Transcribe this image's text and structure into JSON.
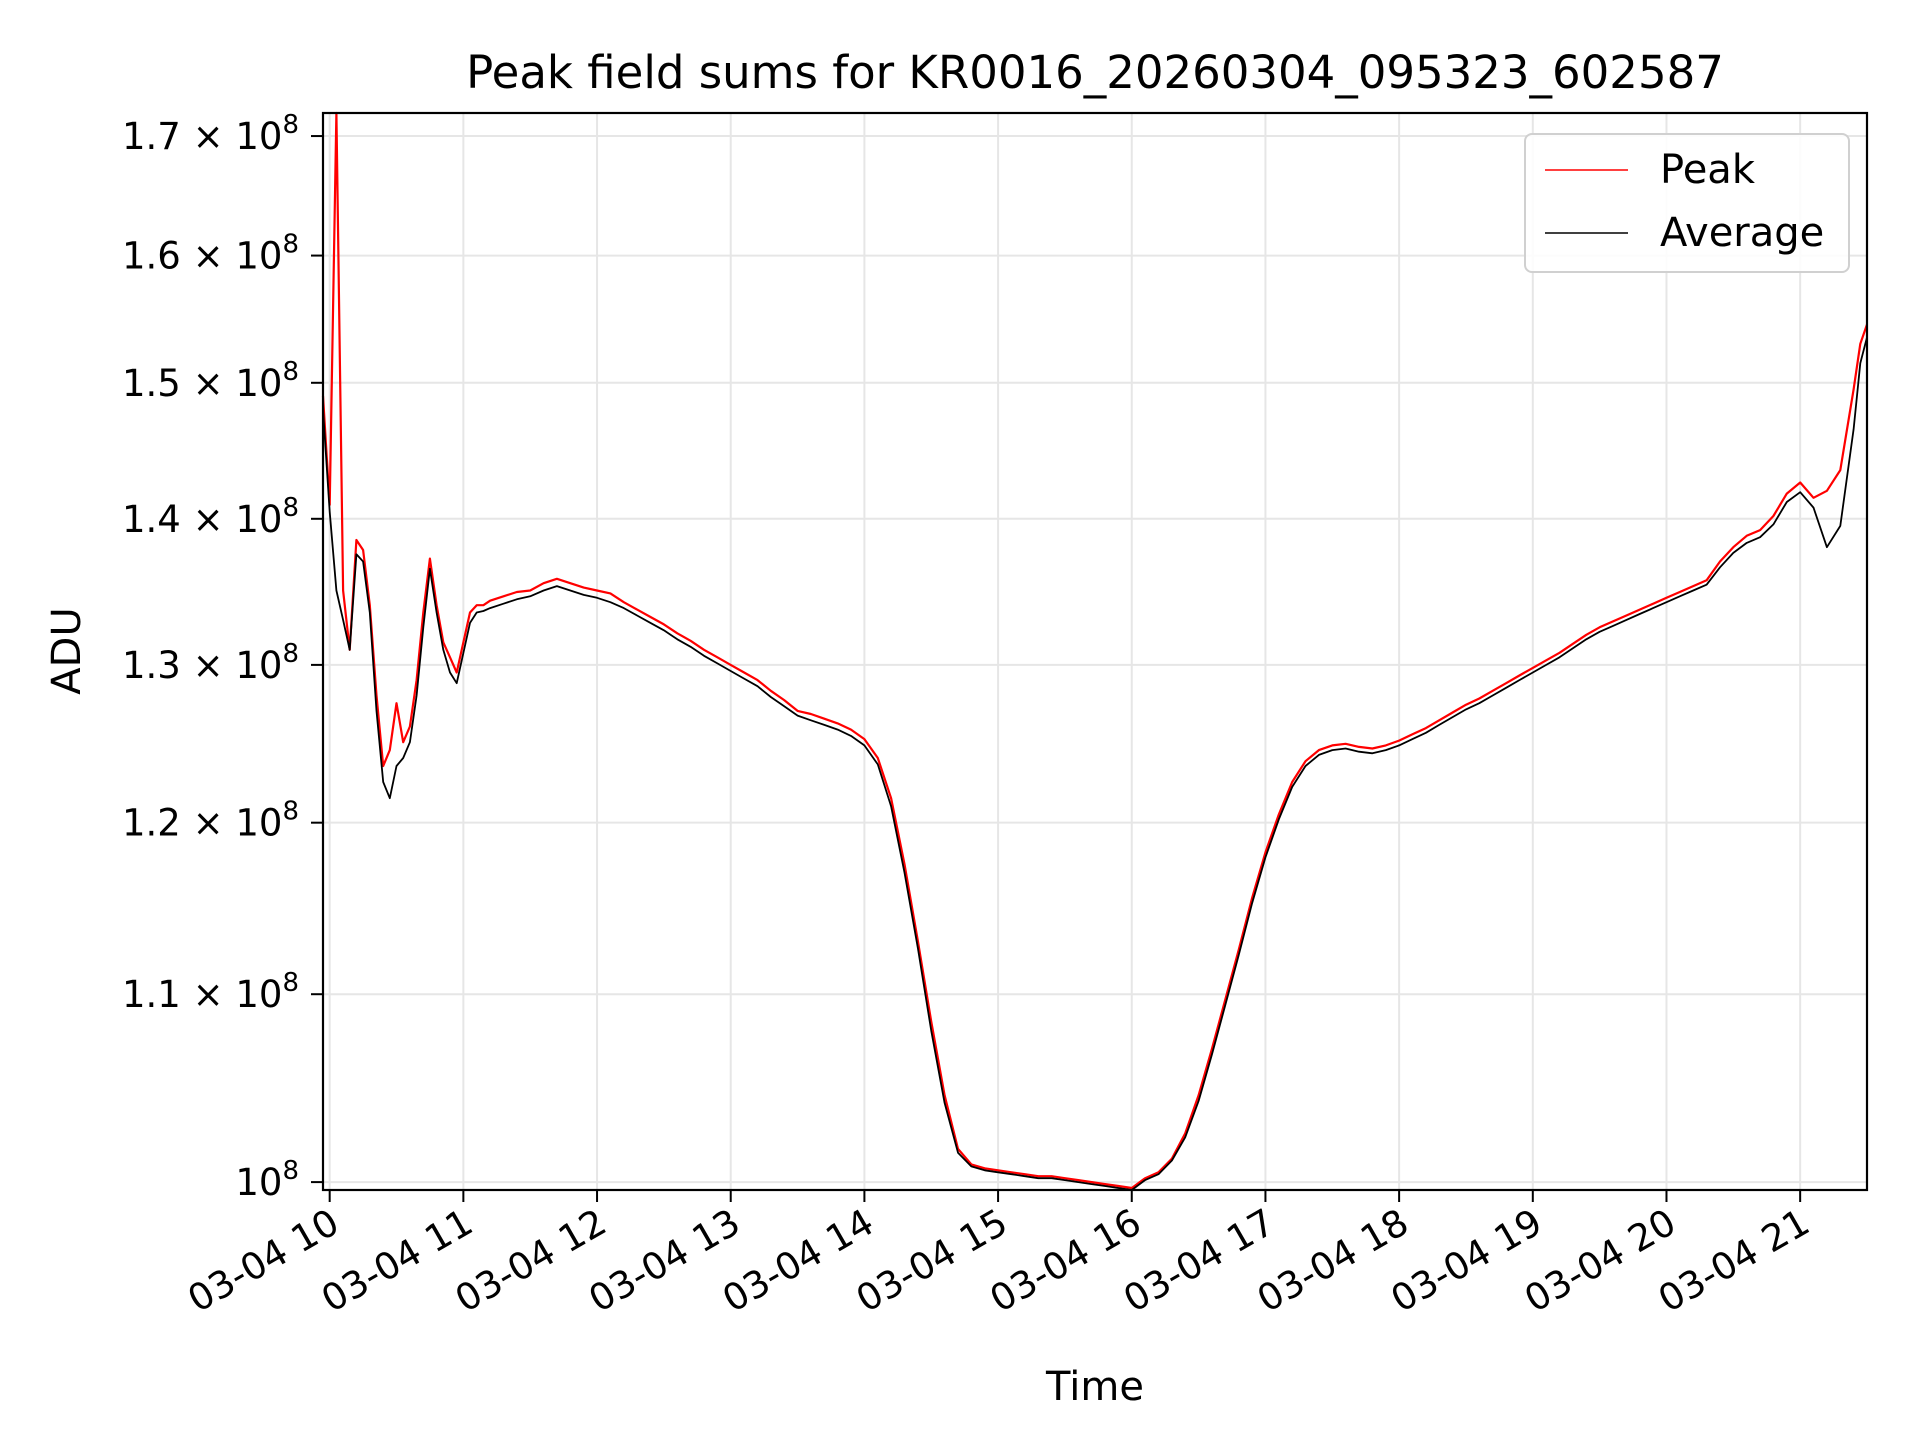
{
  "chart_data": {
    "type": "line",
    "title": "Peak field sums for KR0016_20260304_095323_602587",
    "xlabel": "Time",
    "ylabel": "ADU",
    "yscale": "log",
    "grid": true,
    "legend_position": "top-right",
    "xlim": [
      9.95,
      21.5
    ],
    "ylim": [
      99600000,
      172000000
    ],
    "x_ticks": [
      10,
      11,
      12,
      13,
      14,
      15,
      16,
      17,
      18,
      19,
      20,
      21
    ],
    "x_tick_labels": [
      "03-04 10",
      "03-04 11",
      "03-04 12",
      "03-04 13",
      "03-04 14",
      "03-04 15",
      "03-04 16",
      "03-04 17",
      "03-04 18",
      "03-04 19",
      "03-04 20",
      "03-04 21"
    ],
    "y_ticks": [
      {
        "value": 100000000,
        "mantissa": "",
        "exponent": "8"
      },
      {
        "value": 110000000,
        "mantissa": "1.1",
        "exponent": "8"
      },
      {
        "value": 120000000,
        "mantissa": "1.2",
        "exponent": "8"
      },
      {
        "value": 130000000,
        "mantissa": "1.3",
        "exponent": "8"
      },
      {
        "value": 140000000,
        "mantissa": "1.4",
        "exponent": "8"
      },
      {
        "value": 150000000,
        "mantissa": "1.5",
        "exponent": "8"
      },
      {
        "value": 160000000,
        "mantissa": "1.6",
        "exponent": "8"
      },
      {
        "value": 170000000,
        "mantissa": "1.7",
        "exponent": "8"
      }
    ],
    "series": [
      {
        "name": "Peak",
        "color": "#ff0000",
        "x": [
          9.95,
          10.0,
          10.05,
          10.1,
          10.15,
          10.2,
          10.25,
          10.3,
          10.35,
          10.4,
          10.45,
          10.5,
          10.55,
          10.6,
          10.65,
          10.7,
          10.75,
          10.8,
          10.85,
          10.9,
          10.95,
          11.0,
          11.05,
          11.1,
          11.15,
          11.2,
          11.3,
          11.4,
          11.5,
          11.6,
          11.7,
          11.8,
          11.9,
          12.0,
          12.1,
          12.2,
          12.3,
          12.4,
          12.5,
          12.6,
          12.7,
          12.8,
          12.9,
          13.0,
          13.1,
          13.2,
          13.3,
          13.4,
          13.5,
          13.6,
          13.7,
          13.8,
          13.9,
          14.0,
          14.1,
          14.2,
          14.3,
          14.4,
          14.5,
          14.6,
          14.7,
          14.8,
          14.9,
          15.0,
          15.1,
          15.2,
          15.3,
          15.4,
          15.5,
          15.6,
          15.7,
          15.8,
          15.9,
          16.0,
          16.1,
          16.2,
          16.3,
          16.4,
          16.5,
          16.6,
          16.7,
          16.8,
          16.9,
          17.0,
          17.1,
          17.2,
          17.3,
          17.4,
          17.5,
          17.6,
          17.7,
          17.8,
          17.9,
          18.0,
          18.1,
          18.2,
          18.3,
          18.4,
          18.5,
          18.6,
          18.7,
          18.8,
          18.9,
          19.0,
          19.1,
          19.2,
          19.3,
          19.4,
          19.5,
          19.6,
          19.7,
          19.8,
          19.9,
          20.0,
          20.1,
          20.2,
          20.3,
          20.4,
          20.5,
          20.6,
          20.7,
          20.8,
          20.9,
          21.0,
          21.1,
          21.2,
          21.3,
          21.4,
          21.45,
          21.5
        ],
        "y": [
          149000000,
          141000000,
          172000000,
          135000000,
          131000000,
          138500000,
          137800000,
          134000000,
          128000000,
          123500000,
          124500000,
          127500000,
          125000000,
          126000000,
          129000000,
          133500000,
          137200000,
          134000000,
          131500000,
          130500000,
          129500000,
          131500000,
          133500000,
          134000000,
          134000000,
          134300000,
          134600000,
          134900000,
          135000000,
          135500000,
          135800000,
          135500000,
          135200000,
          135000000,
          134800000,
          134200000,
          133700000,
          133200000,
          132700000,
          132100000,
          131600000,
          131000000,
          130500000,
          130000000,
          129500000,
          129000000,
          128300000,
          127700000,
          127000000,
          126800000,
          126500000,
          126200000,
          125800000,
          125200000,
          124000000,
          121500000,
          117500000,
          113000000,
          108500000,
          104500000,
          101700000,
          100900000,
          100700000,
          100600000,
          100500000,
          100400000,
          100300000,
          100300000,
          100200000,
          100100000,
          100000000,
          99900000,
          99800000,
          99700000,
          100200000,
          100500000,
          101200000,
          102500000,
          104500000,
          107000000,
          109700000,
          112500000,
          115500000,
          118200000,
          120500000,
          122500000,
          123800000,
          124500000,
          124800000,
          124900000,
          124700000,
          124600000,
          124800000,
          125100000,
          125500000,
          125900000,
          126400000,
          126900000,
          127400000,
          127800000,
          128300000,
          128800000,
          129300000,
          129800000,
          130300000,
          130800000,
          131400000,
          132000000,
          132500000,
          132900000,
          133300000,
          133700000,
          134100000,
          134500000,
          134900000,
          135300000,
          135700000,
          137000000,
          138000000,
          138800000,
          139200000,
          140200000,
          141800000,
          142600000,
          141500000,
          142000000,
          143500000,
          149500000,
          153000000,
          154500000
        ]
      },
      {
        "name": "Average",
        "color": "#000000",
        "x": [
          9.95,
          10.0,
          10.05,
          10.1,
          10.15,
          10.2,
          10.25,
          10.3,
          10.35,
          10.4,
          10.45,
          10.5,
          10.55,
          10.6,
          10.65,
          10.7,
          10.75,
          10.8,
          10.85,
          10.9,
          10.95,
          11.0,
          11.05,
          11.1,
          11.15,
          11.2,
          11.3,
          11.4,
          11.5,
          11.6,
          11.7,
          11.8,
          11.9,
          12.0,
          12.1,
          12.2,
          12.3,
          12.4,
          12.5,
          12.6,
          12.7,
          12.8,
          12.9,
          13.0,
          13.1,
          13.2,
          13.3,
          13.4,
          13.5,
          13.6,
          13.7,
          13.8,
          13.9,
          14.0,
          14.1,
          14.2,
          14.3,
          14.4,
          14.5,
          14.6,
          14.7,
          14.8,
          14.9,
          15.0,
          15.1,
          15.2,
          15.3,
          15.4,
          15.5,
          15.6,
          15.7,
          15.8,
          15.9,
          16.0,
          16.1,
          16.2,
          16.3,
          16.4,
          16.5,
          16.6,
          16.7,
          16.8,
          16.9,
          17.0,
          17.1,
          17.2,
          17.3,
          17.4,
          17.5,
          17.6,
          17.7,
          17.8,
          17.9,
          18.0,
          18.1,
          18.2,
          18.3,
          18.4,
          18.5,
          18.6,
          18.7,
          18.8,
          18.9,
          19.0,
          19.1,
          19.2,
          19.3,
          19.4,
          19.5,
          19.6,
          19.7,
          19.8,
          19.9,
          20.0,
          20.1,
          20.2,
          20.3,
          20.4,
          20.5,
          20.6,
          20.7,
          20.8,
          20.9,
          21.0,
          21.1,
          21.2,
          21.3,
          21.4,
          21.45,
          21.5
        ],
        "y": [
          148000000,
          140500000,
          135000000,
          133000000,
          131000000,
          137500000,
          137000000,
          133500000,
          127000000,
          122500000,
          121500000,
          123500000,
          124000000,
          125000000,
          128000000,
          132500000,
          136500000,
          133500000,
          131000000,
          129500000,
          128800000,
          130800000,
          132800000,
          133500000,
          133600000,
          133800000,
          134100000,
          134400000,
          134600000,
          135000000,
          135300000,
          135000000,
          134700000,
          134500000,
          134200000,
          133800000,
          133300000,
          132800000,
          132300000,
          131700000,
          131200000,
          130600000,
          130100000,
          129600000,
          129100000,
          128600000,
          127900000,
          127300000,
          126700000,
          126400000,
          126100000,
          125800000,
          125400000,
          124800000,
          123600000,
          121000000,
          117000000,
          112600000,
          108000000,
          104100000,
          101500000,
          100800000,
          100600000,
          100500000,
          100400000,
          100300000,
          100200000,
          100200000,
          100100000,
          100000000,
          99900000,
          99800000,
          99700000,
          99600000,
          100100000,
          100400000,
          101100000,
          102300000,
          104200000,
          106700000,
          109400000,
          112200000,
          115200000,
          117900000,
          120200000,
          122200000,
          123500000,
          124200000,
          124500000,
          124600000,
          124400000,
          124300000,
          124500000,
          124800000,
          125200000,
          125600000,
          126100000,
          126600000,
          127100000,
          127500000,
          128000000,
          128500000,
          129000000,
          129500000,
          130000000,
          130500000,
          131100000,
          131700000,
          132200000,
          132600000,
          133000000,
          133400000,
          133800000,
          134200000,
          134600000,
          135000000,
          135400000,
          136600000,
          137600000,
          138300000,
          138700000,
          139600000,
          141200000,
          141900000,
          140800000,
          138000000,
          139500000,
          146500000,
          151500000,
          153500000
        ]
      }
    ]
  }
}
